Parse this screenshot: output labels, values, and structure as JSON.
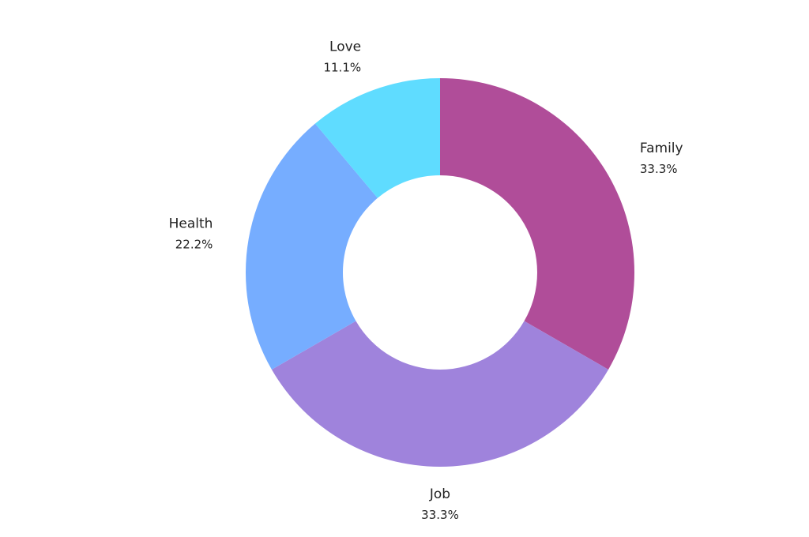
{
  "chart_data": {
    "type": "pie",
    "variant": "donut",
    "legend": "none",
    "slices": [
      {
        "label": "Family",
        "percent_label": "33.3%",
        "value": 33.3,
        "color": "#b04d99"
      },
      {
        "label": "Job",
        "percent_label": "33.3%",
        "value": 33.3,
        "color": "#9f83dc"
      },
      {
        "label": "Health",
        "percent_label": "22.2%",
        "value": 22.2,
        "color": "#76adff"
      },
      {
        "label": "Love",
        "percent_label": "11.1%",
        "value": 11.1,
        "color": "#5fdcff"
      }
    ]
  }
}
